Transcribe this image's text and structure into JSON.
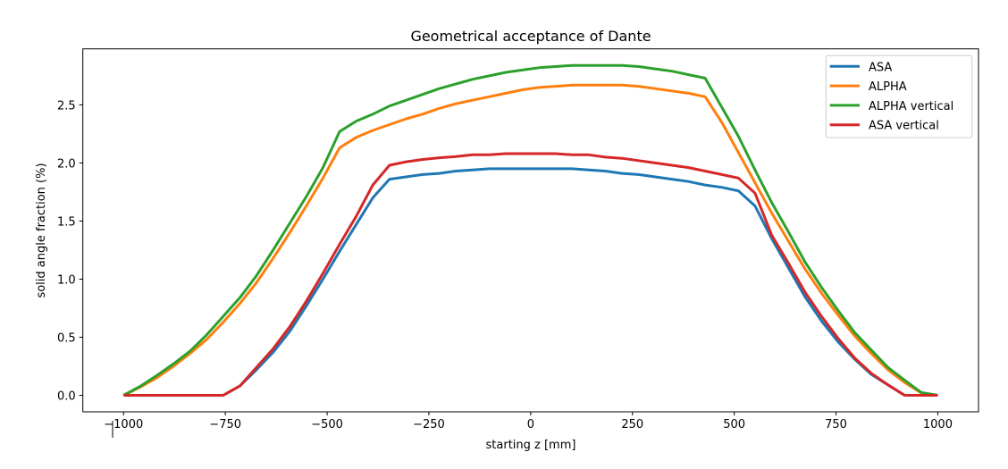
{
  "chart_data": {
    "type": "line",
    "title": "Geometrical acceptance of Dante",
    "xlabel": "starting z [mm]",
    "ylabel": "solid angle fraction (%)",
    "xlim": [
      -1100,
      1100
    ],
    "ylim": [
      -0.142,
      2.982
    ],
    "xticks": [
      -1000,
      -750,
      -500,
      -250,
      0,
      250,
      500,
      750,
      1000
    ],
    "xtick_labels": [
      "−1000",
      "−750",
      "−500",
      "−250",
      "0",
      "250",
      "500",
      "750",
      "1000"
    ],
    "yticks": [
      0.0,
      0.5,
      1.0,
      1.5,
      2.0,
      2.5
    ],
    "ytick_labels": [
      "0.0",
      "0.5",
      "1.0",
      "1.5",
      "2.0",
      "2.5"
    ],
    "grid": false,
    "legend_position": "top-right",
    "x": [
      -1000,
      -959.2,
      -918.4,
      -877.6,
      -836.7,
      -795.9,
      -755.1,
      -714.3,
      -673.5,
      -632.7,
      -591.8,
      -551.0,
      -510.2,
      -469.4,
      -428.6,
      -387.8,
      -346.9,
      -306.1,
      -265.3,
      -224.5,
      -183.7,
      -142.9,
      -102.0,
      -61.2,
      -20.4,
      20.4,
      61.2,
      102.0,
      142.9,
      183.7,
      224.5,
      265.3,
      306.1,
      346.9,
      387.8,
      428.6,
      469.4,
      510.2,
      551.0,
      591.8,
      632.7,
      673.5,
      714.3,
      755.1,
      795.9,
      836.7,
      877.6,
      918.4,
      959.2,
      1000
    ],
    "series": [
      {
        "name": "ASA",
        "color": "#1f77b4",
        "values": [
          0,
          0,
          0,
          0,
          0,
          0,
          0,
          0.08,
          0.22,
          0.37,
          0.55,
          0.77,
          1.0,
          1.24,
          1.47,
          1.7,
          1.86,
          1.88,
          1.9,
          1.91,
          1.93,
          1.94,
          1.95,
          1.95,
          1.95,
          1.95,
          1.95,
          1.95,
          1.94,
          1.93,
          1.91,
          1.9,
          1.88,
          1.86,
          1.84,
          1.81,
          1.79,
          1.76,
          1.63,
          1.35,
          1.1,
          0.85,
          0.64,
          0.46,
          0.31,
          0.18,
          0.09,
          0,
          0,
          0
        ]
      },
      {
        "name": "ALPHA",
        "color": "#ff7f0e",
        "values": [
          0,
          0.07,
          0.15,
          0.25,
          0.36,
          0.48,
          0.63,
          0.79,
          0.97,
          1.18,
          1.4,
          1.63,
          1.87,
          2.13,
          2.22,
          2.28,
          2.33,
          2.38,
          2.42,
          2.47,
          2.51,
          2.54,
          2.57,
          2.6,
          2.63,
          2.65,
          2.66,
          2.67,
          2.67,
          2.67,
          2.67,
          2.66,
          2.64,
          2.62,
          2.6,
          2.57,
          2.35,
          2.09,
          1.83,
          1.57,
          1.33,
          1.09,
          0.88,
          0.69,
          0.51,
          0.36,
          0.22,
          0.11,
          0.02,
          0
        ]
      },
      {
        "name": "ALPHA vertical",
        "color": "#2ca02c",
        "values": [
          0,
          0.077,
          0.17,
          0.27,
          0.38,
          0.52,
          0.68,
          0.84,
          1.03,
          1.25,
          1.48,
          1.71,
          1.96,
          2.27,
          2.36,
          2.42,
          2.49,
          2.54,
          2.59,
          2.64,
          2.68,
          2.72,
          2.75,
          2.78,
          2.8,
          2.82,
          2.83,
          2.84,
          2.84,
          2.84,
          2.84,
          2.83,
          2.81,
          2.79,
          2.76,
          2.73,
          2.48,
          2.23,
          1.94,
          1.66,
          1.41,
          1.15,
          0.93,
          0.73,
          0.54,
          0.39,
          0.24,
          0.13,
          0.025,
          0
        ]
      },
      {
        "name": "ASA vertical",
        "color": "#d62728",
        "values": [
          0,
          0,
          0,
          0,
          0,
          0,
          0,
          0.08,
          0.24,
          0.4,
          0.59,
          0.81,
          1.05,
          1.3,
          1.54,
          1.81,
          1.98,
          2.01,
          2.03,
          2.045,
          2.055,
          2.07,
          2.07,
          2.08,
          2.08,
          2.08,
          2.08,
          2.07,
          2.07,
          2.05,
          2.04,
          2.02,
          2.0,
          1.98,
          1.96,
          1.93,
          1.9,
          1.87,
          1.74,
          1.38,
          1.14,
          0.89,
          0.68,
          0.49,
          0.32,
          0.19,
          0.09,
          0,
          0,
          0
        ]
      }
    ]
  }
}
